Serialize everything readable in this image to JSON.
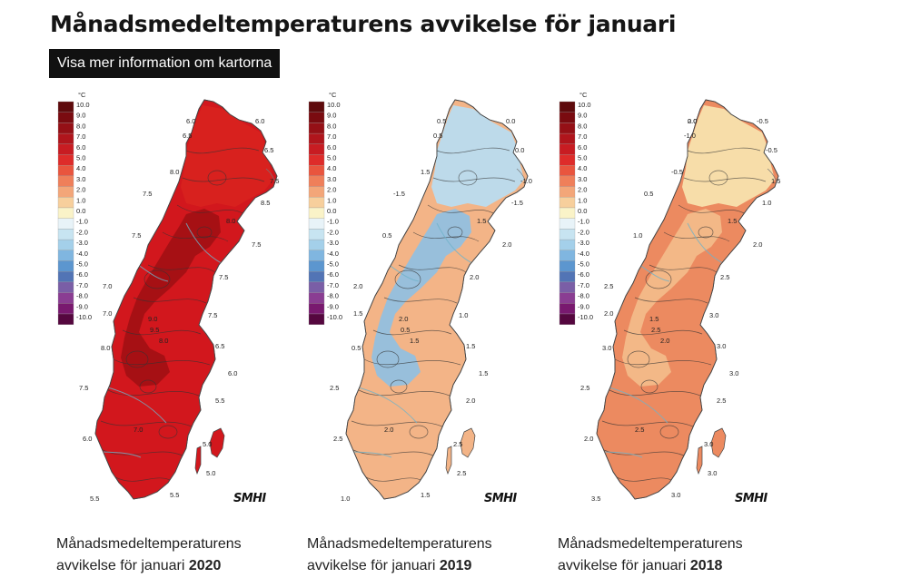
{
  "page": {
    "title": "Månadsmedeltemperaturens avvikelse för januari",
    "info_button": "Visa mer information om kartorna"
  },
  "legend": {
    "unit": "°C",
    "classes": [
      {
        "label": "10.0",
        "color": "#5e0a0c"
      },
      {
        "label": "9.0",
        "color": "#7a0b10"
      },
      {
        "label": "8.0",
        "color": "#951016"
      },
      {
        "label": "7.0",
        "color": "#b0151c"
      },
      {
        "label": "6.0",
        "color": "#c81c22"
      },
      {
        "label": "5.0",
        "color": "#de2c2a"
      },
      {
        "label": "4.0",
        "color": "#e9553e"
      },
      {
        "label": "3.0",
        "color": "#ef7f5a"
      },
      {
        "label": "2.0",
        "color": "#f3a679"
      },
      {
        "label": "1.0",
        "color": "#f7cf9c"
      },
      {
        "label": "0.0",
        "color": "#faf3c8"
      },
      {
        "label": "-1.0",
        "color": "#e8f3f8"
      },
      {
        "label": "-2.0",
        "color": "#c7e4f1"
      },
      {
        "label": "-3.0",
        "color": "#a4d0ea"
      },
      {
        "label": "-4.0",
        "color": "#80b6e0"
      },
      {
        "label": "-5.0",
        "color": "#5c96cf"
      },
      {
        "label": "-6.0",
        "color": "#5274b5"
      },
      {
        "label": "-7.0",
        "color": "#7a5ea6"
      },
      {
        "label": "-8.0",
        "color": "#8a3d92"
      },
      {
        "label": "-9.0",
        "color": "#79196f"
      },
      {
        "label": "-10.0",
        "color": "#55073f"
      }
    ]
  },
  "logo": "SMHI",
  "maps": [
    {
      "caption_prefix": "Månadsmedeltemperaturens avvikelse för januari",
      "year": "2020",
      "fill": "#d2171d",
      "fill_north": "#d8221f",
      "fill_core": "#a10f14",
      "isolines": [
        "6.0",
        "6.0",
        "6.5",
        "6.5",
        "7.5",
        "8.0",
        "8.5",
        "7.5",
        "8.0",
        "7.5",
        "7.5",
        "7.5",
        "7.0",
        "8.0",
        "7.0",
        "9.0",
        "7.5",
        "8.0",
        "9.5",
        "6.5",
        "6.0",
        "7.5",
        "5.5",
        "5.0",
        "7.0",
        "6.0",
        "5.0",
        "5.5",
        "5.5"
      ]
    },
    {
      "caption_prefix": "Månadsmedeltemperaturens avvikelse för januari",
      "year": "2019",
      "fill": "#f3b487",
      "fill_north": "#b9dcef",
      "fill_core": "#8ec0e4",
      "isolines": [
        "0.5",
        "0.0",
        "0.5",
        "0.0",
        "-1.0",
        "1.5",
        "-1.5",
        "-1.5",
        "1.5",
        "2.0",
        "0.5",
        "2.0",
        "2.0",
        "0.5",
        "1.5",
        "2.0",
        "1.0",
        "1.5",
        "0.5",
        "1.5",
        "1.5",
        "2.5",
        "1.0",
        "2.5",
        "2.0",
        "2.5",
        "2.5",
        "1.5",
        "2.0"
      ]
    },
    {
      "caption_prefix": "Månadsmedeltemperaturens avvikelse för januari",
      "year": "2018",
      "fill": "#ec8a60",
      "fill_north": "#f8e2ad",
      "fill_core": "#f4bd8c",
      "isolines": [
        "0.0",
        "-0.5",
        "-1.0",
        "-0.5",
        "1.5",
        "-0.5",
        "1.0",
        "0.5",
        "1.5",
        "2.0",
        "1.0",
        "2.5",
        "2.5",
        "3.0",
        "2.0",
        "1.5",
        "3.0",
        "2.0",
        "2.5",
        "3.0",
        "3.0",
        "2.5",
        "3.5",
        "3.0",
        "2.5",
        "2.0",
        "3.0",
        "3.0",
        "2.5",
        "2.0"
      ]
    }
  ]
}
